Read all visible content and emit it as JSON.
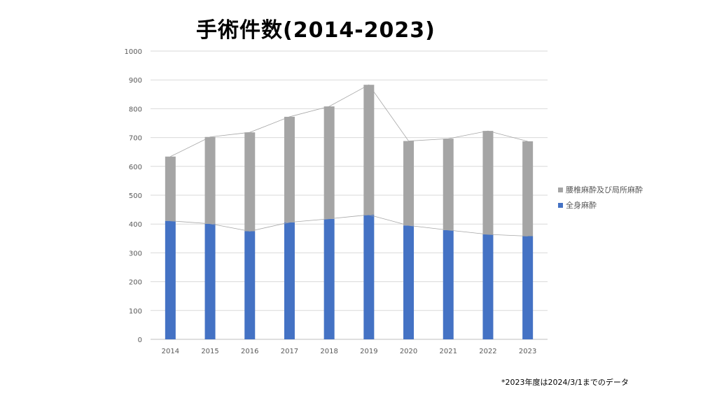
{
  "chart_data": {
    "type": "bar",
    "stacked": true,
    "title": "手術件数(2014-2023)",
    "categories": [
      "2014",
      "2015",
      "2016",
      "2017",
      "2018",
      "2019",
      "2020",
      "2021",
      "2022",
      "2023"
    ],
    "series": [
      {
        "name": "全身麻酔",
        "color": "#4472C4",
        "values": [
          411,
          401,
          375,
          406,
          418,
          432,
          395,
          379,
          364,
          358
        ]
      },
      {
        "name": "腰椎麻酔及び局所麻酔",
        "color": "#A5A5A5",
        "values": [
          223,
          301,
          343,
          366,
          390,
          451,
          293,
          317,
          359,
          329
        ]
      }
    ],
    "ylim": [
      0,
      1000
    ],
    "yticks": [
      "0",
      "100",
      "200",
      "300",
      "400",
      "500",
      "600",
      "700",
      "800",
      "900",
      "1000"
    ],
    "grid": true,
    "legend": "right",
    "series_lines": true,
    "footnote": "*2023年度は2024/3/1までのデータ"
  }
}
